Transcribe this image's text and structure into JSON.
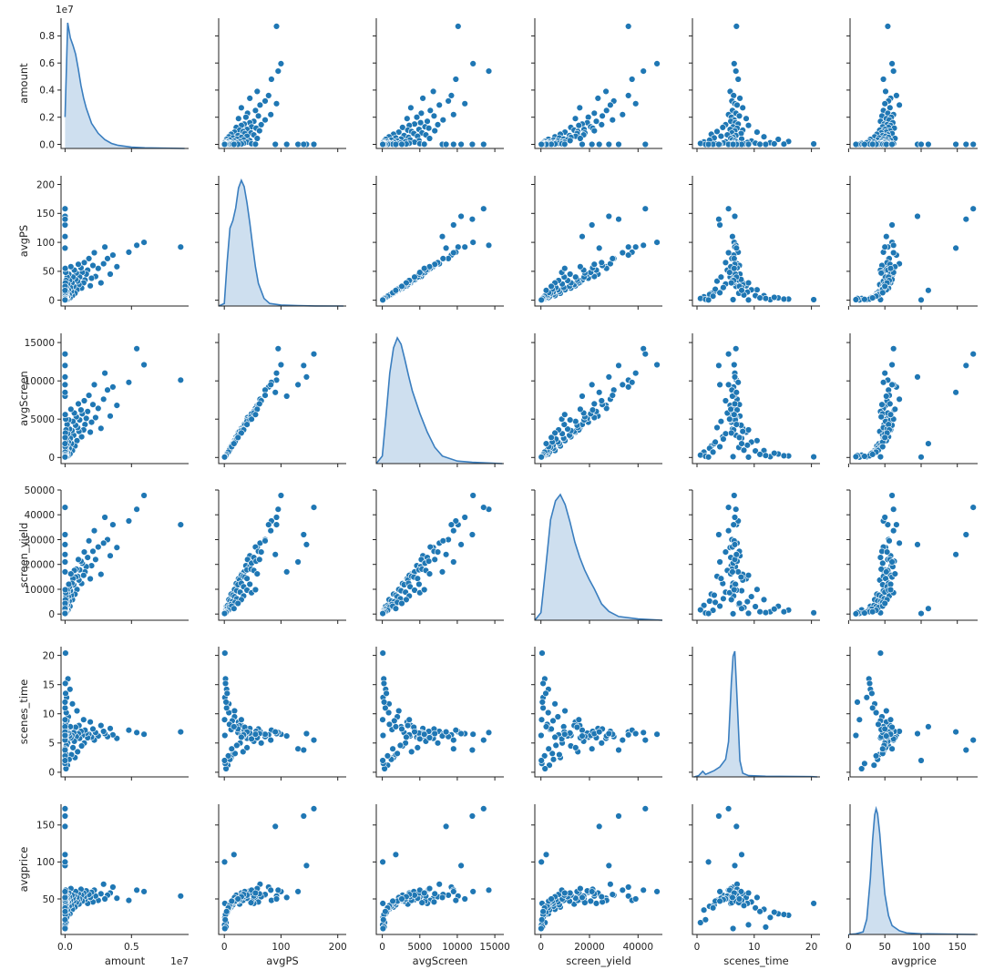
{
  "chart_data": {
    "type": "scatter",
    "variant": "pairplot",
    "variables": [
      "amount",
      "avgPS",
      "avgScreen",
      "screen_yield",
      "scenes_time",
      "avgprice"
    ],
    "colors": {
      "point_fill": "#1f77b4",
      "point_edge": "#ffffff",
      "kde_line": "#3a7ebf",
      "kde_fill": "#3a7ebf",
      "axis": "#222222"
    },
    "diagonal": "kde",
    "grid": false,
    "legend": "none",
    "axes": {
      "amount": {
        "range": [
          -300000,
          9300000
        ],
        "ticks": [
          0,
          5000000
        ],
        "x_tick_labels": [
          "0.0",
          "0.5"
        ],
        "y_ticks": [
          0,
          2000000,
          4000000,
          6000000,
          8000000
        ],
        "y_tick_labels": [
          "0.0",
          "0.2",
          "0.4",
          "0.6",
          "0.8"
        ],
        "offset_label": "1e7"
      },
      "avgPS": {
        "range": [
          -10,
          215
        ],
        "ticks": [
          0,
          100,
          200
        ],
        "tick_labels": [
          "0",
          "100",
          "200"
        ],
        "y_ticks": [
          0,
          50,
          100,
          150,
          200
        ],
        "y_tick_labels": [
          "0",
          "50",
          "100",
          "150",
          "200"
        ]
      },
      "avgScreen": {
        "range": [
          -800,
          16200
        ],
        "ticks": [
          0,
          5000,
          10000,
          15000
        ],
        "tick_labels": [
          "0",
          "5000",
          "10000",
          "15000"
        ],
        "y_ticks": [
          0,
          5000,
          10000,
          15000
        ],
        "y_tick_labels": [
          "0",
          "5000",
          "10000",
          "15000"
        ]
      },
      "screen_yield": {
        "range": [
          -2500,
          50000
        ],
        "ticks": [
          0,
          20000,
          40000
        ],
        "tick_labels": [
          "0",
          "20000",
          "40000"
        ],
        "y_ticks": [
          0,
          10000,
          20000,
          30000,
          40000,
          50000
        ],
        "y_tick_labels": [
          "0",
          "10000",
          "20000",
          "30000",
          "40000",
          "50000"
        ]
      },
      "scenes_time": {
        "range": [
          -0.8,
          21.5
        ],
        "ticks": [
          0,
          10,
          20
        ],
        "tick_labels": [
          "0",
          "10",
          "20"
        ],
        "y_ticks": [
          0,
          5,
          10,
          15,
          20
        ],
        "y_tick_labels": [
          "0",
          "5",
          "10",
          "15",
          "20"
        ]
      },
      "avgprice": {
        "range": [
          2,
          178
        ],
        "ticks": [
          0,
          50,
          100,
          150
        ],
        "tick_labels": [
          "0",
          "50",
          "100",
          "150"
        ],
        "y_ticks": [
          50,
          100,
          150
        ],
        "y_tick_labels": [
          "50",
          "100",
          "150"
        ]
      }
    },
    "kde": {
      "amount": {
        "x": [
          0,
          200000,
          400000,
          600000,
          800000,
          1000000,
          1200000,
          1400000,
          1600000,
          2000000,
          2500000,
          3000000,
          3500000,
          4000000,
          5000000,
          6000000,
          9000000
        ],
        "density": [
          0.25,
          1.0,
          0.88,
          0.82,
          0.75,
          0.63,
          0.5,
          0.4,
          0.32,
          0.2,
          0.12,
          0.07,
          0.04,
          0.025,
          0.01,
          0.005,
          0.0
        ]
      },
      "avgPS": {
        "x": [
          -10,
          0,
          5,
          10,
          15,
          20,
          25,
          30,
          35,
          40,
          45,
          50,
          55,
          60,
          70,
          80,
          100,
          130,
          160,
          210
        ],
        "density": [
          0.0,
          0.02,
          0.35,
          0.62,
          0.68,
          0.78,
          0.94,
          1.0,
          0.95,
          0.82,
          0.66,
          0.48,
          0.31,
          0.18,
          0.06,
          0.02,
          0.008,
          0.003,
          0.001,
          0.0
        ]
      },
      "avgScreen": {
        "x": [
          -800,
          0,
          500,
          1000,
          1500,
          2000,
          2500,
          3000,
          3500,
          4000,
          5000,
          6000,
          7000,
          8000,
          10000,
          12000,
          16000
        ],
        "density": [
          0.0,
          0.06,
          0.38,
          0.72,
          0.92,
          1.0,
          0.95,
          0.83,
          0.7,
          0.58,
          0.4,
          0.25,
          0.13,
          0.06,
          0.02,
          0.01,
          0.0
        ]
      },
      "screen_yield": {
        "x": [
          -2500,
          0,
          2000,
          4000,
          6000,
          8000,
          10000,
          12000,
          14000,
          16000,
          18000,
          20000,
          22000,
          25000,
          28000,
          32000,
          40000,
          50000
        ],
        "density": [
          0.0,
          0.06,
          0.42,
          0.8,
          0.95,
          1.0,
          0.92,
          0.78,
          0.62,
          0.5,
          0.4,
          0.32,
          0.25,
          0.13,
          0.07,
          0.03,
          0.01,
          0.0
        ]
      },
      "scenes_time": {
        "x": [
          -0.5,
          0.3,
          1,
          1.5,
          2,
          3,
          4,
          5,
          5.5,
          6,
          6.3,
          6.6,
          7,
          7.5,
          8,
          9,
          12,
          20,
          21
        ],
        "density": [
          0.0,
          0.01,
          0.045,
          0.02,
          0.03,
          0.05,
          0.08,
          0.14,
          0.28,
          0.75,
          0.96,
          1.0,
          0.62,
          0.13,
          0.03,
          0.01,
          0.005,
          0.002,
          0.0
        ]
      },
      "avgprice": {
        "x": [
          0,
          10,
          20,
          25,
          30,
          33,
          36,
          38,
          40,
          43,
          46,
          50,
          55,
          60,
          70,
          80,
          100,
          175
        ],
        "density": [
          0.0,
          0.005,
          0.02,
          0.12,
          0.45,
          0.75,
          0.95,
          1.0,
          0.96,
          0.8,
          0.58,
          0.32,
          0.15,
          0.07,
          0.03,
          0.012,
          0.005,
          0.0
        ]
      }
    },
    "series": [
      {
        "observations": [
          [
            8700000,
            92,
            10100,
            36000,
            6.9,
            54
          ],
          [
            5950000,
            100,
            12100,
            47800,
            6.5,
            60
          ],
          [
            5400000,
            95,
            14200,
            42200,
            6.8,
            62
          ],
          [
            4800000,
            83,
            9800,
            37500,
            7.2,
            48
          ],
          [
            3900000,
            58,
            6800,
            26800,
            5.8,
            51
          ],
          [
            3600000,
            78,
            9200,
            36000,
            6.4,
            66
          ],
          [
            3400000,
            45,
            5400,
            23500,
            7.5,
            58
          ],
          [
            3200000,
            72,
            8800,
            30000,
            6.1,
            55
          ],
          [
            3000000,
            92,
            11000,
            39000,
            6.6,
            50
          ],
          [
            2900000,
            63,
            7600,
            28600,
            7.0,
            70
          ],
          [
            2700000,
            30,
            3800,
            16000,
            8.0,
            57
          ],
          [
            2500000,
            55,
            6400,
            27000,
            6.2,
            48
          ],
          [
            2300000,
            41,
            5200,
            22000,
            6.8,
            54
          ],
          [
            2200000,
            82,
            9500,
            33600,
            5.5,
            62
          ],
          [
            2100000,
            60,
            6900,
            25300,
            7.4,
            46
          ],
          [
            2000000,
            38,
            4600,
            19500,
            6.0,
            59
          ],
          [
            1900000,
            25,
            3300,
            14200,
            8.6,
            52
          ],
          [
            1800000,
            72,
            8100,
            29500,
            6.5,
            56
          ],
          [
            1700000,
            52,
            6000,
            22800,
            5.9,
            44
          ],
          [
            1600000,
            45,
            5100,
            19100,
            6.7,
            61
          ],
          [
            1500000,
            35,
            4300,
            17000,
            7.2,
            49
          ],
          [
            1450000,
            65,
            7400,
            25000,
            5.0,
            53
          ],
          [
            1400000,
            30,
            3600,
            15600,
            9.0,
            58
          ],
          [
            1300000,
            48,
            5700,
            20500,
            6.3,
            47
          ],
          [
            1250000,
            21,
            2700,
            12300,
            4.5,
            55
          ],
          [
            1200000,
            56,
            6200,
            21300,
            7.0,
            63
          ],
          [
            1100000,
            40,
            4900,
            17800,
            5.8,
            50
          ],
          [
            1050000,
            27,
            3400,
            13700,
            8.0,
            43
          ],
          [
            1000000,
            62,
            7000,
            22000,
            6.6,
            57
          ],
          [
            950000,
            33,
            3900,
            15200,
            3.5,
            48
          ],
          [
            900000,
            18,
            2200,
            9900,
            10.5,
            52
          ],
          [
            850000,
            47,
            5300,
            18100,
            6.1,
            45
          ],
          [
            800000,
            36,
            4200,
            14900,
            7.7,
            60
          ],
          [
            750000,
            12,
            1500,
            8000,
            2.5,
            39
          ],
          [
            700000,
            52,
            5800,
            17600,
            5.3,
            54
          ],
          [
            650000,
            24,
            2900,
            11800,
            6.8,
            47
          ],
          [
            600000,
            40,
            4700,
            14300,
            4.2,
            51
          ],
          [
            560000,
            8,
            900,
            5800,
            11.7,
            36
          ],
          [
            520000,
            30,
            3500,
            12400,
            6.3,
            55
          ],
          [
            480000,
            15,
            1800,
            7600,
            3.0,
            42
          ],
          [
            440000,
            58,
            6300,
            16200,
            5.9,
            64
          ],
          [
            400000,
            22,
            2500,
            9400,
            7.8,
            48
          ],
          [
            370000,
            4,
            450,
            3100,
            14.2,
            30
          ],
          [
            340000,
            34,
            3700,
            11000,
            6.2,
            53
          ],
          [
            310000,
            10,
            1200,
            5200,
            2.2,
            40
          ],
          [
            280000,
            45,
            4900,
            12000,
            6.7,
            58
          ],
          [
            250000,
            18,
            2000,
            7000,
            9.5,
            46
          ],
          [
            220000,
            2,
            200,
            1600,
            16.0,
            28
          ],
          [
            200000,
            28,
            3100,
            8800,
            5.0,
            50
          ],
          [
            180000,
            6,
            700,
            3500,
            1.2,
            35
          ],
          [
            160000,
            40,
            4300,
            9600,
            6.9,
            55
          ],
          [
            140000,
            14,
            1600,
            5000,
            8.8,
            44
          ],
          [
            120000,
            1,
            100,
            900,
            12.8,
            25
          ],
          [
            100000,
            22,
            2400,
            6200,
            4.6,
            49
          ],
          [
            90000,
            8,
            850,
            3000,
            10.2,
            38
          ],
          [
            80000,
            34,
            3600,
            7300,
            6.4,
            56
          ],
          [
            70000,
            3,
            300,
            1700,
            0.6,
            18
          ],
          [
            60000,
            12,
            1300,
            3900,
            7.3,
            45
          ],
          [
            50000,
            48,
            5000,
            8600,
            5.7,
            62
          ],
          [
            45000,
            5,
            550,
            2000,
            13.5,
            32
          ],
          [
            40000,
            19,
            2000,
            4700,
            3.2,
            47
          ],
          [
            35000,
            1,
            80,
            500,
            20.4,
            44
          ],
          [
            30000,
            9,
            950,
            2600,
            8.2,
            41
          ],
          [
            26000,
            30,
            3200,
            5800,
            6.0,
            53
          ],
          [
            22000,
            2,
            220,
            900,
            15.2,
            29
          ],
          [
            18000,
            13,
            1400,
            3200,
            4.0,
            47
          ],
          [
            15000,
            55,
            5600,
            9800,
            6.5,
            58
          ],
          [
            12000,
            0.5,
            50,
            300,
            9.0,
            15
          ],
          [
            10000,
            24,
            2600,
            4300,
            7.4,
            50
          ],
          [
            8000,
            7,
            700,
            1500,
            2.8,
            38
          ],
          [
            6000,
            4,
            400,
            900,
            11.0,
            33
          ],
          [
            5000,
            110,
            8000,
            17000,
            6.2,
            52
          ],
          [
            4000,
            1.5,
            150,
            400,
            1.5,
            22
          ],
          [
            3000,
            130,
            9500,
            21000,
            4.0,
            60
          ],
          [
            2000,
            17,
            1800,
            2200,
            7.8,
            110
          ],
          [
            1500,
            145,
            10500,
            28000,
            6.6,
            95
          ],
          [
            1000,
            3,
            250,
            600,
            12.0,
            12
          ],
          [
            800,
            158,
            13500,
            43000,
            5.5,
            172
          ],
          [
            600,
            140,
            12000,
            32000,
            3.8,
            162
          ],
          [
            400,
            90,
            8500,
            24000,
            6.9,
            148
          ],
          [
            200,
            1,
            100,
            100,
            6.3,
            10
          ],
          [
            100,
            0.5,
            60,
            200,
            2.0,
            100
          ]
        ]
      }
    ],
    "xlabels": [
      "amount",
      "avgPS",
      "avgScreen",
      "screen_yield",
      "scenes_time",
      "avgprice"
    ],
    "ylabels": [
      "amount",
      "avgPS",
      "avgScreen",
      "screen_yield",
      "scenes_time",
      "avgprice"
    ]
  }
}
